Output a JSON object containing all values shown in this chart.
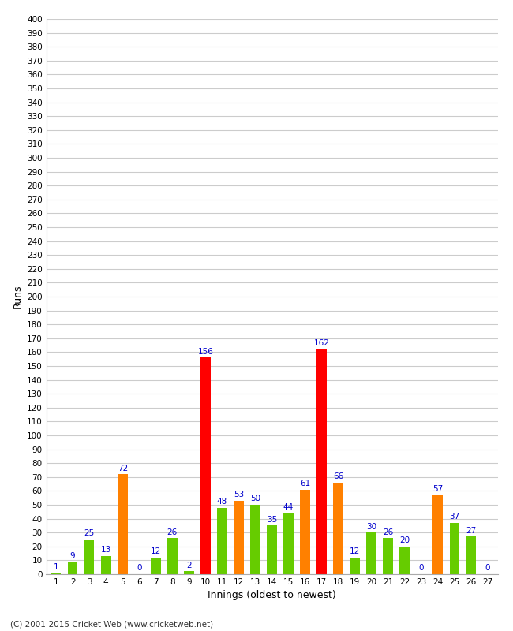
{
  "title": "",
  "xlabel": "Innings (oldest to newest)",
  "ylabel": "Runs",
  "values": [
    1,
    9,
    25,
    13,
    72,
    0,
    12,
    26,
    2,
    156,
    48,
    53,
    50,
    35,
    44,
    61,
    162,
    66,
    12,
    30,
    26,
    20,
    0,
    57,
    37,
    27,
    0
  ],
  "colors": [
    "#66cc00",
    "#66cc00",
    "#66cc00",
    "#66cc00",
    "#ff8000",
    "#66cc00",
    "#66cc00",
    "#66cc00",
    "#66cc00",
    "#ff0000",
    "#66cc00",
    "#ff8000",
    "#66cc00",
    "#66cc00",
    "#66cc00",
    "#ff8000",
    "#ff0000",
    "#ff8000",
    "#66cc00",
    "#66cc00",
    "#66cc00",
    "#66cc00",
    "#66cc00",
    "#ff8000",
    "#66cc00",
    "#66cc00",
    "#66cc00"
  ],
  "categories": [
    "1",
    "2",
    "3",
    "4",
    "5",
    "6",
    "7",
    "8",
    "9",
    "10",
    "11",
    "12",
    "13",
    "14",
    "15",
    "16",
    "17",
    "18",
    "19",
    "20",
    "21",
    "22",
    "23",
    "24",
    "25",
    "26",
    "27"
  ],
  "ylim": [
    0,
    400
  ],
  "yticks": [
    0,
    10,
    20,
    30,
    40,
    50,
    60,
    70,
    80,
    90,
    100,
    110,
    120,
    130,
    140,
    150,
    160,
    170,
    180,
    190,
    200,
    210,
    220,
    230,
    240,
    250,
    260,
    270,
    280,
    290,
    300,
    310,
    320,
    330,
    340,
    350,
    360,
    370,
    380,
    390,
    400
  ],
  "background_color": "#ffffff",
  "grid_color": "#cccccc",
  "label_color": "#0000cc",
  "footer": "(C) 2001-2015 Cricket Web (www.cricketweb.net)"
}
